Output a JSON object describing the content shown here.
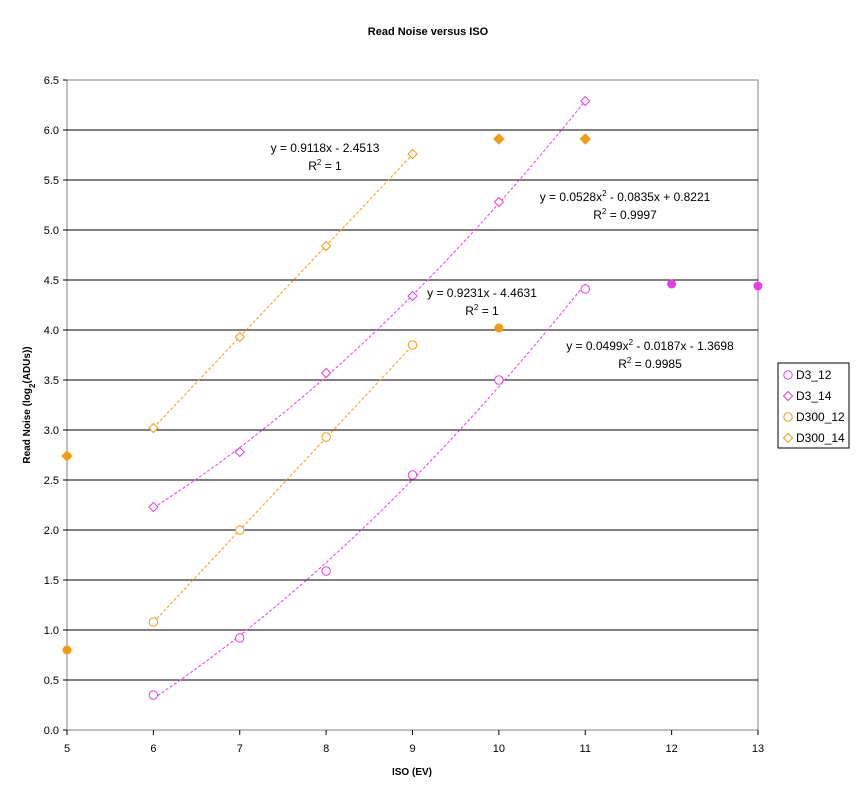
{
  "chart_data": {
    "type": "scatter",
    "title": "Read Noise versus ISO",
    "xlabel": "ISO (EV)",
    "ylabel": "Read Noise (log2(ADUs))",
    "ylabel_parts": {
      "before": "Read Noise (log",
      "sub": "2",
      "after": "(ADUs))"
    },
    "xlim": [
      5,
      13
    ],
    "ylim": [
      0,
      6.5
    ],
    "xticks": [
      "5",
      "6",
      "7",
      "8",
      "9",
      "10",
      "11",
      "12",
      "13"
    ],
    "yticks": [
      "0.0",
      "0.5",
      "1.0",
      "1.5",
      "2.0",
      "2.5",
      "3.0",
      "3.5",
      "4.0",
      "4.5",
      "5.0",
      "5.5",
      "6.0",
      "6.5"
    ],
    "grid": "horizontal",
    "legend_position": "right",
    "colors": {
      "magenta": "#e83ce8",
      "orange": "#f39c12"
    },
    "series": [
      {
        "name": "D3_12",
        "color": "#e83ce8",
        "marker": "circle",
        "x": [
          6,
          7,
          8,
          9,
          10,
          11
        ],
        "y": [
          0.35,
          0.92,
          1.59,
          2.55,
          3.5,
          4.41
        ]
      },
      {
        "name": "D3_14",
        "color": "#e83ce8",
        "marker": "diamond",
        "x": [
          6,
          7,
          8,
          9,
          10,
          11
        ],
        "y": [
          2.23,
          2.78,
          3.57,
          4.34,
          5.28,
          6.29
        ]
      },
      {
        "name": "D300_12",
        "color": "#f39c12",
        "marker": "circle",
        "x": [
          6,
          7,
          8,
          9
        ],
        "y": [
          1.08,
          2.0,
          2.93,
          3.85
        ]
      },
      {
        "name": "D300_14",
        "color": "#f39c12",
        "marker": "diamond",
        "x": [
          6,
          7,
          8,
          9
        ],
        "y": [
          3.02,
          3.93,
          4.84,
          5.76
        ]
      }
    ],
    "extra_points": [
      {
        "color": "#f39c12",
        "marker": "filled-circle",
        "x": [
          5,
          10
        ],
        "y": [
          0.8,
          4.02
        ]
      },
      {
        "color": "#f39c12",
        "marker": "filled-diamond",
        "x": [
          5,
          10,
          11
        ],
        "y": [
          2.74,
          5.91,
          5.91
        ]
      },
      {
        "color": "#e83ce8",
        "marker": "filled-circle",
        "x": [
          12,
          13
        ],
        "y": [
          4.46,
          4.44
        ]
      }
    ],
    "trendlines": [
      {
        "series": "D300_14",
        "color": "#f39c12",
        "kind": "linear",
        "a": 0.9118,
        "b": -2.4513,
        "x_range": [
          6,
          9
        ],
        "equation": {
          "main": "y = 0.9118x - 2.4513",
          "r2": "= 1"
        }
      },
      {
        "series": "D3_14",
        "color": "#e83ce8",
        "kind": "poly2",
        "c2": 0.0528,
        "c1": -0.0835,
        "c0": 0.8221,
        "x_range": [
          6,
          11
        ],
        "equation": {
          "pre": "y = 0.0528x",
          "sup": "2",
          "post": " - 0.0835x + 0.8221",
          "r2": "= 0.9997"
        }
      },
      {
        "series": "D300_12",
        "color": "#f39c12",
        "kind": "linear",
        "a": 0.9231,
        "b": -4.4631,
        "x_range": [
          6,
          9
        ],
        "equation": {
          "main": "y = 0.9231x - 4.4631",
          "r2": "= 1"
        }
      },
      {
        "series": "D3_12",
        "color": "#e83ce8",
        "kind": "poly2",
        "c2": 0.0499,
        "c1": -0.0187,
        "c0": -1.3698,
        "x_range": [
          6,
          11
        ],
        "equation": {
          "pre": "y = 0.0499x",
          "sup": "2",
          "post": " - 0.0187x - 1.3698",
          "r2": "= 0.9985"
        }
      }
    ]
  }
}
